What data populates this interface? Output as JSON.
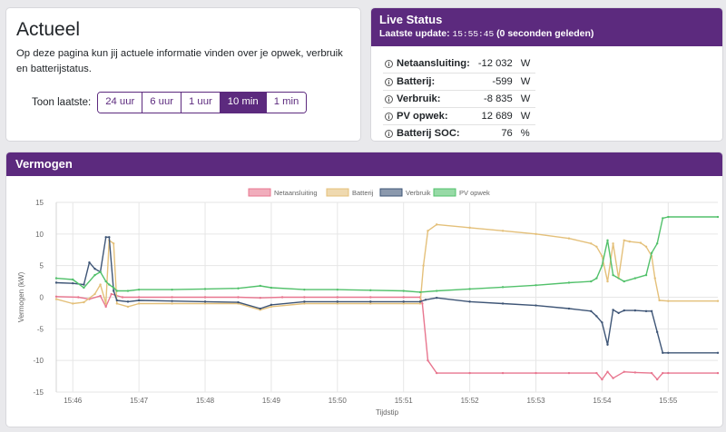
{
  "actueel": {
    "title": "Actueel",
    "intro": "Op deze pagina kun jij actuele informatie vinden over je opwek, verbruik en batterijstatus.",
    "toon_label": "Toon laatste:",
    "ranges": [
      "24 uur",
      "6 uur",
      "1 uur",
      "10 min",
      "1 min"
    ],
    "active_range": "10 min"
  },
  "live": {
    "title": "Live Status",
    "update_label": "Laatste update:",
    "update_time": "15:55:45",
    "update_ago": "(0 seconden geleden)",
    "rows": [
      {
        "label": "Netaansluiting:",
        "value": "-12 032",
        "unit": "W"
      },
      {
        "label": "Batterij:",
        "value": "-599",
        "unit": "W"
      },
      {
        "label": "Verbruik:",
        "value": "-8 835",
        "unit": "W"
      },
      {
        "label": "PV opwek:",
        "value": "12 689",
        "unit": "W"
      },
      {
        "label": "Batterij SOC:",
        "value": "76",
        "unit": "%"
      }
    ]
  },
  "vermogen": {
    "title": "Vermogen"
  },
  "chart_data": {
    "type": "line",
    "title": "",
    "xlabel": "Tijdstip",
    "ylabel": "Vermogen (kW)",
    "ylim": [
      -15,
      15
    ],
    "yticks": [
      15,
      10,
      5,
      0,
      -5,
      -10,
      -15
    ],
    "xlim": [
      "15:45:45",
      "15:55:45"
    ],
    "xticks": [
      "15:46",
      "15:47",
      "15:48",
      "15:49",
      "15:50",
      "15:51",
      "15:52",
      "15:53",
      "15:54",
      "15:55"
    ],
    "grid": true,
    "legend": "top-center",
    "series": [
      {
        "name": "Netaansluiting",
        "color": "#e8768f",
        "x": [
          "15:45:45",
          "15:46:05",
          "15:46:15",
          "15:46:25",
          "15:46:30",
          "15:46:35",
          "15:46:45",
          "15:47:00",
          "15:47:30",
          "15:48:00",
          "15:48:30",
          "15:48:50",
          "15:49:10",
          "15:49:30",
          "15:50:00",
          "15:50:30",
          "15:51:00",
          "15:51:15",
          "15:51:17",
          "15:51:22",
          "15:51:30",
          "15:52:00",
          "15:52:30",
          "15:53:00",
          "15:53:30",
          "15:53:55",
          "15:54:00",
          "15:54:05",
          "15:54:10",
          "15:54:20",
          "15:54:30",
          "15:54:45",
          "15:54:50",
          "15:54:55",
          "15:55:00",
          "15:55:45"
        ],
        "y": [
          0.1,
          0.0,
          -0.3,
          0.2,
          -1.5,
          0.5,
          0.0,
          0.0,
          0.0,
          0.0,
          0.0,
          -0.1,
          0.0,
          0.0,
          0.0,
          0.0,
          0.0,
          0.0,
          -1.0,
          -10.0,
          -12.0,
          -12.0,
          -12.0,
          -12.0,
          -12.0,
          -12.0,
          -13.0,
          -11.8,
          -12.8,
          -11.8,
          -11.9,
          -12.0,
          -13.0,
          -12.0,
          -12.0,
          -12.0
        ]
      },
      {
        "name": "Batterij",
        "color": "#e4c07a",
        "x": [
          "15:45:45",
          "15:46:00",
          "15:46:10",
          "15:46:20",
          "15:46:25",
          "15:46:30",
          "15:46:33",
          "15:46:37",
          "15:46:40",
          "15:46:50",
          "15:47:00",
          "15:47:30",
          "15:48:00",
          "15:48:30",
          "15:48:50",
          "15:49:00",
          "15:49:30",
          "15:50:00",
          "15:50:30",
          "15:51:00",
          "15:51:15",
          "15:51:18",
          "15:51:22",
          "15:51:30",
          "15:52:00",
          "15:52:30",
          "15:53:00",
          "15:53:30",
          "15:53:50",
          "15:53:55",
          "15:54:00",
          "15:54:05",
          "15:54:10",
          "15:54:15",
          "15:54:20",
          "15:54:25",
          "15:54:35",
          "15:54:40",
          "15:54:45",
          "15:54:48",
          "15:54:52",
          "15:55:00",
          "15:55:45"
        ],
        "y": [
          -0.3,
          -1.0,
          -0.8,
          0.5,
          2.0,
          -1.0,
          9.0,
          8.5,
          -1.0,
          -1.5,
          -1.0,
          -1.0,
          -1.0,
          -1.0,
          -2.0,
          -1.5,
          -1.0,
          -1.0,
          -1.0,
          -1.0,
          -1.0,
          5.0,
          10.5,
          11.5,
          11.0,
          10.5,
          10.0,
          9.3,
          8.5,
          8.0,
          6.5,
          2.5,
          8.5,
          3.0,
          9.0,
          8.8,
          8.6,
          8.0,
          6.5,
          3.0,
          -0.5,
          -0.6,
          -0.6
        ]
      },
      {
        "name": "Verbruik",
        "color": "#3e5576",
        "x": [
          "15:45:45",
          "15:46:00",
          "15:46:10",
          "15:46:15",
          "15:46:20",
          "15:46:25",
          "15:46:30",
          "15:46:33",
          "15:46:37",
          "15:46:40",
          "15:46:50",
          "15:47:00",
          "15:47:30",
          "15:48:00",
          "15:48:30",
          "15:48:50",
          "15:49:00",
          "15:49:30",
          "15:50:00",
          "15:50:30",
          "15:51:00",
          "15:51:15",
          "15:51:20",
          "15:51:30",
          "15:52:00",
          "15:52:30",
          "15:53:00",
          "15:53:30",
          "15:53:50",
          "15:53:55",
          "15:54:00",
          "15:54:05",
          "15:54:10",
          "15:54:15",
          "15:54:20",
          "15:54:30",
          "15:54:40",
          "15:54:45",
          "15:54:50",
          "15:54:55",
          "15:55:00",
          "15:55:45"
        ],
        "y": [
          2.3,
          2.2,
          2.0,
          5.5,
          4.5,
          4.0,
          9.5,
          9.5,
          1.0,
          -0.5,
          -0.7,
          -0.5,
          -0.6,
          -0.7,
          -0.8,
          -1.8,
          -1.2,
          -0.7,
          -0.7,
          -0.7,
          -0.7,
          -0.7,
          -0.4,
          -0.1,
          -0.7,
          -1.0,
          -1.3,
          -1.8,
          -2.2,
          -3.0,
          -4.0,
          -7.5,
          -2.0,
          -2.5,
          -2.1,
          -2.1,
          -2.2,
          -2.2,
          -5.5,
          -8.8,
          -8.8,
          -8.8
        ]
      },
      {
        "name": "PV opwek",
        "color": "#52c16b",
        "x": [
          "15:45:45",
          "15:46:00",
          "15:46:10",
          "15:46:20",
          "15:46:25",
          "15:46:30",
          "15:46:33",
          "15:46:37",
          "15:46:40",
          "15:46:50",
          "15:47:00",
          "15:47:30",
          "15:48:00",
          "15:48:30",
          "15:48:50",
          "15:49:00",
          "15:49:30",
          "15:50:00",
          "15:50:30",
          "15:51:00",
          "15:51:15",
          "15:51:30",
          "15:52:00",
          "15:52:30",
          "15:53:00",
          "15:53:30",
          "15:53:50",
          "15:53:55",
          "15:54:00",
          "15:54:05",
          "15:54:10",
          "15:54:20",
          "15:54:30",
          "15:54:40",
          "15:54:45",
          "15:54:50",
          "15:54:55",
          "15:55:00",
          "15:55:45"
        ],
        "y": [
          3.0,
          2.8,
          1.5,
          3.5,
          4.0,
          2.5,
          2.0,
          1.5,
          1.0,
          1.0,
          1.2,
          1.2,
          1.3,
          1.4,
          1.8,
          1.5,
          1.2,
          1.2,
          1.1,
          1.0,
          0.8,
          1.0,
          1.3,
          1.6,
          1.9,
          2.3,
          2.5,
          3.0,
          5.0,
          9.0,
          3.5,
          2.5,
          3.0,
          3.5,
          7.0,
          8.5,
          12.5,
          12.7,
          12.7
        ]
      }
    ]
  }
}
